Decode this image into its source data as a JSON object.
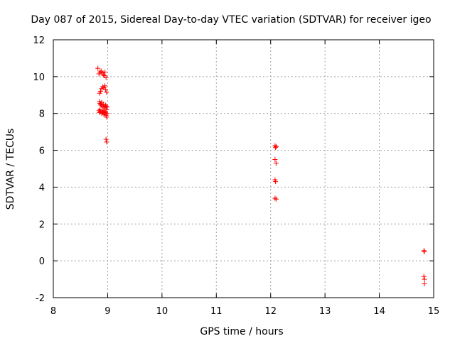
{
  "chart_data": {
    "type": "scatter",
    "title": "Day 087 of 2015, Sidereal Day-to-day VTEC variation (SDTVAR) for receiver igeo",
    "xlabel": "GPS time / hours",
    "ylabel": "SDTVAR / TECUs",
    "xlim": [
      8,
      15
    ],
    "ylim": [
      -2,
      12
    ],
    "xticks": [
      "8",
      "9",
      "10",
      "11",
      "12",
      "13",
      "14",
      "15"
    ],
    "yticks": [
      "-2",
      "0",
      "2",
      "4",
      "6",
      "8",
      "10",
      "12"
    ],
    "grid": true,
    "marker": "+",
    "marker_color": "#ff0000",
    "series": [
      {
        "name": "SDTVAR",
        "x": [
          8.82,
          8.84,
          8.86,
          8.88,
          8.9,
          8.92,
          8.94,
          8.95,
          8.97,
          8.85,
          8.87,
          8.89,
          8.91,
          8.93,
          8.95,
          8.96,
          8.98,
          8.85,
          8.86,
          8.87,
          8.88,
          8.89,
          8.9,
          8.92,
          8.93,
          8.95,
          8.96,
          8.97,
          8.98,
          8.99,
          8.84,
          8.85,
          8.86,
          8.87,
          8.89,
          8.9,
          8.91,
          8.92,
          8.93,
          8.94,
          8.95,
          8.96,
          8.97,
          8.98,
          8.99,
          8.97,
          8.98,
          12.08,
          12.09,
          12.1,
          12.08,
          12.1,
          12.08,
          12.09,
          12.08,
          12.1,
          14.82,
          14.83,
          14.82,
          14.83,
          14.83
        ],
        "y": [
          10.45,
          10.15,
          10.25,
          10.3,
          10.2,
          10.1,
          10.05,
          10.25,
          9.95,
          9.1,
          9.2,
          9.35,
          9.45,
          9.4,
          9.5,
          9.3,
          9.15,
          8.65,
          8.55,
          8.5,
          8.45,
          8.6,
          8.4,
          8.5,
          8.35,
          8.3,
          8.45,
          8.4,
          8.2,
          8.35,
          8.15,
          8.05,
          8.2,
          8.1,
          8.0,
          8.15,
          8.05,
          8.1,
          7.95,
          8.0,
          8.1,
          8.05,
          7.9,
          7.8,
          8.0,
          6.6,
          6.45,
          6.25,
          6.15,
          6.2,
          5.5,
          5.3,
          4.4,
          4.3,
          3.4,
          3.35,
          0.55,
          0.5,
          -0.85,
          -1.0,
          -1.25
        ]
      }
    ]
  }
}
